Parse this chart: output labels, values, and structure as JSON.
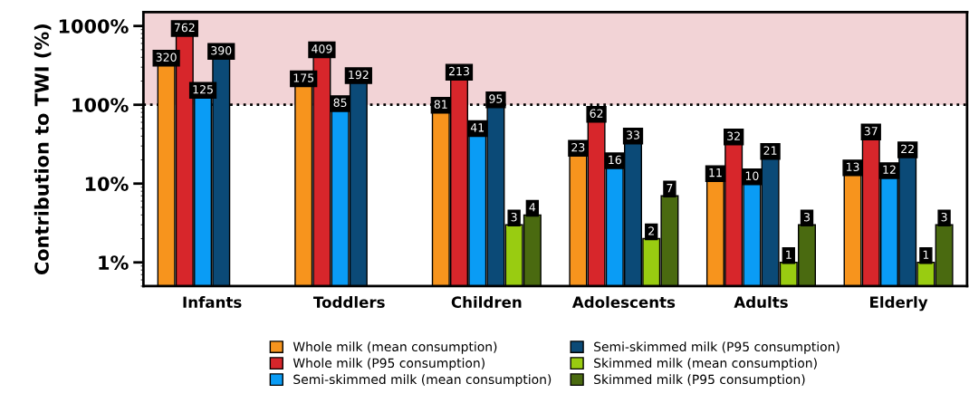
{
  "chart_data": {
    "type": "bar",
    "ylabel": "Contribution to TWI (%)",
    "categories": [
      "Infants",
      "Toddlers",
      "Children",
      "Adolescents",
      "Adults",
      "Elderly"
    ],
    "series": [
      {
        "name": "Whole milk (mean consumption)",
        "color": "#f7941d",
        "values": [
          320,
          175,
          81,
          23,
          11,
          13
        ]
      },
      {
        "name": "Whole milk (P95 consumption)",
        "color": "#d7262b",
        "values": [
          762,
          409,
          213,
          62,
          32,
          37
        ]
      },
      {
        "name": "Semi-skimmed milk (mean consumption)",
        "color": "#0a9cf5",
        "values": [
          125,
          85,
          41,
          16,
          10,
          12
        ]
      },
      {
        "name": "Semi-skimmed milk (P95 consumption)",
        "color": "#0b4a77",
        "values": [
          390,
          192,
          95,
          33,
          21,
          22
        ]
      },
      {
        "name": "Skimmed milk (mean consumption)",
        "color": "#99cc11",
        "values": [
          null,
          null,
          3,
          2,
          1,
          1
        ]
      },
      {
        "name": "Skimmed milk (P95 consumption)",
        "color": "#4a6a10",
        "values": [
          null,
          null,
          4,
          7,
          3,
          3
        ]
      }
    ],
    "log": true,
    "ylim": [
      0.5,
      1500
    ],
    "yticks": [
      {
        "value": 1,
        "label": "1%"
      },
      {
        "value": 10,
        "label": "10%"
      },
      {
        "value": 100,
        "label": "100%"
      },
      {
        "value": 1000,
        "label": "1000%"
      }
    ],
    "bands": [
      {
        "axis": "y",
        "from": 100,
        "to": 1500,
        "color": "#f2d3d6"
      }
    ],
    "ref_lines": [
      {
        "axis": "y",
        "value": 100,
        "color": "#000000",
        "line_style": "dotted"
      }
    ],
    "data_labels": true,
    "legend": "bottom",
    "grid": false
  }
}
